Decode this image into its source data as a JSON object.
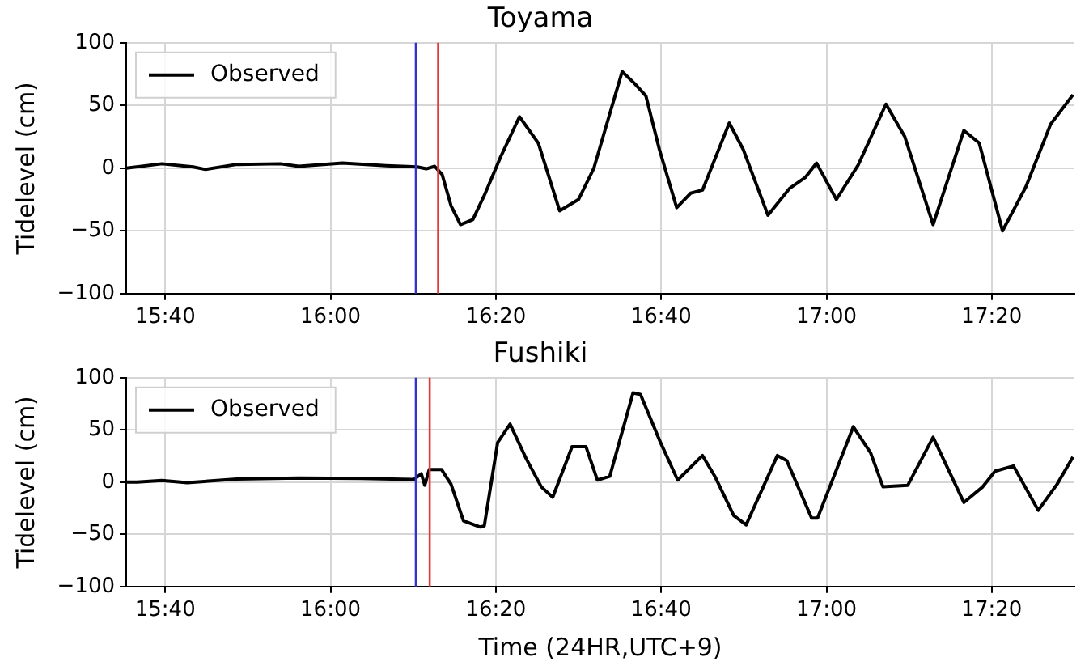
{
  "chart_data": [
    {
      "type": "line",
      "title": "Toyama",
      "ylabel": "Tidelevel (cm)",
      "xlim": [
        15.588,
        17.5
      ],
      "ylim": [
        -100,
        100
      ],
      "yticks": [
        -100,
        -50,
        0,
        50,
        100
      ],
      "xticks": [
        {
          "value": 15.6667,
          "label": "15:40"
        },
        {
          "value": 16,
          "label": "16:00"
        },
        {
          "value": 16.3333,
          "label": "16:20"
        },
        {
          "value": 16.6667,
          "label": "16:40"
        },
        {
          "value": 17,
          "label": "17:00"
        },
        {
          "value": 17.3333,
          "label": "17:20"
        }
      ],
      "grid": true,
      "legend": "top left",
      "marker": "none",
      "line_style": "solid",
      "ref_lines": [
        {
          "axis": "x",
          "value": 16.172,
          "label": null,
          "color": "#3333cc"
        },
        {
          "axis": "x",
          "value": 16.217,
          "label": null,
          "color": "#e03a3a"
        }
      ],
      "series": [
        {
          "name": "Observed",
          "color": "#000000",
          "x": [
            15.588,
            15.66,
            15.723,
            15.748,
            15.811,
            15.899,
            15.936,
            16.024,
            16.112,
            16.175,
            16.193,
            16.21,
            16.225,
            16.243,
            16.262,
            16.287,
            16.312,
            16.343,
            16.381,
            16.419,
            16.462,
            16.5,
            16.531,
            16.588,
            16.613,
            16.636,
            16.663,
            16.698,
            16.726,
            16.75,
            16.804,
            16.832,
            16.882,
            16.926,
            16.957,
            16.98,
            17.02,
            17.064,
            17.12,
            17.158,
            17.215,
            17.277,
            17.308,
            17.355,
            17.402,
            17.452,
            17.497
          ],
          "values": [
            0,
            3.5,
            1,
            -1,
            3,
            3.5,
            1.5,
            4,
            2,
            1,
            -0.5,
            1.5,
            -5,
            -30,
            -45,
            -41,
            -20,
            9,
            41,
            20,
            -34,
            -25,
            0,
            77,
            67.5,
            57.5,
            15,
            -31.5,
            -20,
            -17.5,
            36,
            15,
            -37.5,
            -16,
            -7.5,
            4,
            -25,
            2.5,
            51,
            25,
            -45,
            30,
            20,
            -50,
            -15,
            35,
            58.5
          ]
        }
      ]
    },
    {
      "type": "line",
      "title": "Fushiki",
      "ylabel": "Tidelevel (cm)",
      "xlabel": "Time (24HR,UTC+9)",
      "xlim": [
        15.588,
        17.5
      ],
      "ylim": [
        -100,
        100
      ],
      "yticks": [
        -100,
        -50,
        0,
        50,
        100
      ],
      "xticks": [
        {
          "value": 15.6667,
          "label": "15:40"
        },
        {
          "value": 16,
          "label": "16:00"
        },
        {
          "value": 16.3333,
          "label": "16:20"
        },
        {
          "value": 16.6667,
          "label": "16:40"
        },
        {
          "value": 17,
          "label": "17:00"
        },
        {
          "value": 17.3333,
          "label": "17:20"
        }
      ],
      "grid": true,
      "legend": "top left",
      "marker": "none",
      "line_style": "solid",
      "ref_lines": [
        {
          "axis": "x",
          "value": 16.172,
          "label": null,
          "color": "#3333cc"
        },
        {
          "axis": "x",
          "value": 16.2,
          "label": null,
          "color": "#e03a3a"
        }
      ],
      "series": [
        {
          "name": "Observed",
          "color": "#000000",
          "x": [
            15.588,
            15.61,
            15.66,
            15.711,
            15.811,
            15.936,
            16.061,
            16.168,
            16.183,
            16.19,
            16.199,
            16.224,
            16.243,
            16.268,
            16.302,
            16.31,
            16.337,
            16.362,
            16.394,
            16.425,
            16.448,
            16.487,
            16.515,
            16.538,
            16.563,
            16.61,
            16.625,
            16.663,
            16.7,
            16.75,
            16.775,
            16.813,
            16.838,
            16.901,
            16.92,
            16.97,
            16.982,
            17.054,
            17.089,
            17.114,
            17.164,
            17.215,
            17.277,
            17.315,
            17.34,
            17.377,
            17.427,
            17.465,
            17.497
          ],
          "values": [
            0,
            0,
            1.5,
            -0.5,
            3,
            4,
            3.5,
            2.5,
            8,
            -3,
            12,
            12,
            -2,
            -37,
            -43,
            -42,
            38,
            55.5,
            23,
            -4.5,
            -14.5,
            34,
            34,
            2,
            5.5,
            85.5,
            84,
            40.5,
            2,
            25.5,
            5.5,
            -32,
            -41,
            25.5,
            20.5,
            -34.5,
            -34.5,
            53,
            28,
            -4.5,
            -3,
            43,
            -19.5,
            -4.5,
            10.5,
            15.5,
            -27,
            -2,
            24
          ]
        }
      ]
    }
  ]
}
